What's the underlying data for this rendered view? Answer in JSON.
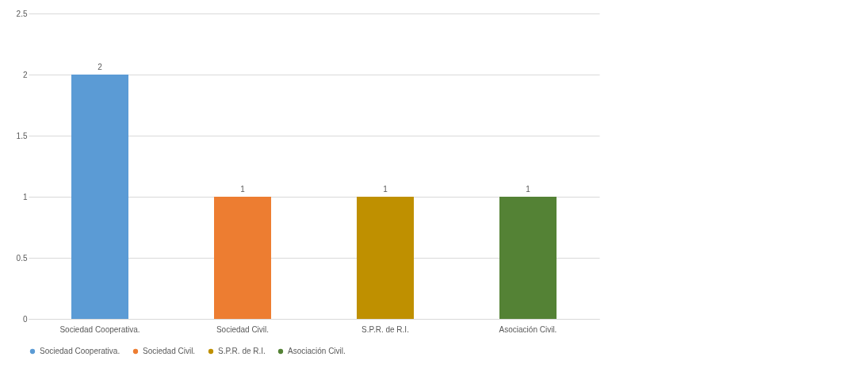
{
  "chart_data": {
    "type": "bar",
    "categories": [
      "Sociedad Cooperativa.",
      "Sociedad Civil.",
      "S.P.R. de R.I.",
      "Asociación Civil."
    ],
    "series": [
      {
        "name": "Sociedad Cooperativa.",
        "color": "#5b9bd5",
        "values": [
          2,
          null,
          null,
          null
        ]
      },
      {
        "name": "Sociedad Civil.",
        "color": "#ed7d31",
        "values": [
          null,
          1,
          null,
          null
        ]
      },
      {
        "name": "S.P.R. de R.I.",
        "color": "#bf9000",
        "values": [
          null,
          null,
          1,
          null
        ]
      },
      {
        "name": "Asociación Civil.",
        "color": "#548235",
        "values": [
          null,
          null,
          null,
          1
        ]
      }
    ],
    "ylim": [
      0,
      2.5
    ],
    "yticks": [
      0,
      0.5,
      1,
      1.5,
      2,
      2.5
    ],
    "grid": "y",
    "data_labels": true,
    "legend": "bottom"
  }
}
